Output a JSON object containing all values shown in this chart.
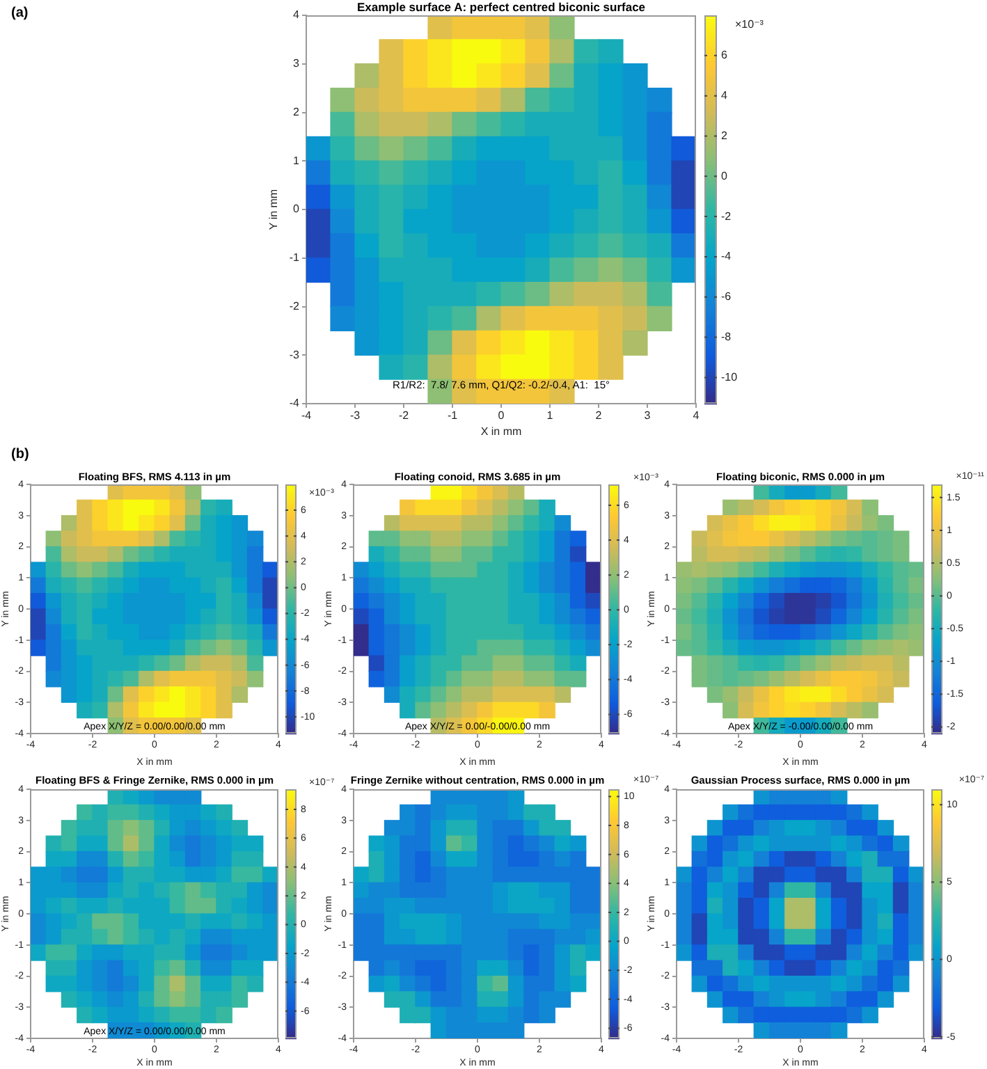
{
  "chart_data": [
    {
      "type": "heatmap",
      "title": "Example surface A: perfect centred biconic surface",
      "xlabel": "X in mm",
      "ylabel": "Y in mm",
      "clabel": "×10⁻³",
      "annotations": [
        "(a)",
        "R1/R2:  7.8/ 7.6 mm, Q1/Q2: -0.2/-0.4, A1:  15°"
      ],
      "x": [
        -3.75,
        -3.25,
        -2.75,
        -2.25,
        -1.75,
        -1.25,
        -0.75,
        -0.25,
        0.25,
        0.75,
        1.25,
        1.75,
        2.25,
        2.75,
        3.25,
        3.75
      ],
      "xlim": [
        -4,
        4
      ],
      "ylim": [
        -4,
        4
      ],
      "xticks": [
        -4,
        -3,
        -2,
        -1,
        0,
        1,
        2,
        3,
        4
      ],
      "yticks": [
        -4,
        -3,
        -2,
        -1,
        0,
        1,
        2,
        3,
        4
      ],
      "clim": [
        -11.3,
        8
      ],
      "cticks": [
        -10,
        -8,
        -6,
        -4,
        -2,
        0,
        2,
        4,
        6
      ],
      "cells": [
        [
          null,
          null,
          null,
          null,
          null,
          4,
          5,
          5,
          5,
          4,
          1,
          null,
          null,
          null,
          null,
          null
        ],
        [
          null,
          null,
          null,
          4,
          6,
          7,
          8,
          8,
          7,
          5,
          2,
          -2,
          -3,
          null,
          null,
          null
        ],
        [
          null,
          null,
          2,
          4,
          6,
          7,
          8,
          7,
          6,
          4,
          0,
          -3,
          -4,
          -5,
          null,
          null
        ],
        [
          null,
          1,
          3,
          4,
          5,
          5,
          5,
          4,
          2,
          -1,
          -2,
          -3,
          -4,
          -5,
          -6,
          null
        ],
        [
          null,
          -1,
          2,
          3,
          3,
          2,
          0,
          -1,
          -2,
          -3,
          -3,
          -3,
          -4,
          -5,
          -7,
          null
        ],
        [
          -5,
          -2,
          0,
          1,
          0,
          -1,
          -3,
          -4,
          -4,
          -4,
          -3,
          -3,
          -3,
          -5,
          -7,
          -9
        ],
        [
          -7,
          -3,
          -2,
          -1,
          -2,
          -3,
          -4,
          -5,
          -5,
          -4,
          -4,
          -3,
          -2,
          -4,
          -7,
          -10
        ],
        [
          -9,
          -5,
          -3,
          -2,
          -3,
          -4,
          -5,
          -5,
          -5,
          -5,
          -4,
          -4,
          -2,
          -3,
          -6,
          -10
        ],
        [
          -10,
          -6,
          -3,
          -2,
          -4,
          -4,
          -5,
          -5,
          -5,
          -5,
          -4,
          -3,
          -2,
          -3,
          -5,
          -9
        ],
        [
          -10,
          -7,
          -4,
          -2,
          -3,
          -4,
          -4,
          -5,
          -5,
          -4,
          -3,
          -2,
          -1,
          -2,
          -3,
          -7
        ],
        [
          -9,
          -7,
          -5,
          -3,
          -3,
          -3,
          -4,
          -4,
          -4,
          -3,
          -1,
          0,
          1,
          0,
          -2,
          -5
        ],
        [
          null,
          -7,
          -5,
          -4,
          -3,
          -3,
          -3,
          -2,
          -1,
          0,
          2,
          3,
          3,
          2,
          -1,
          null
        ],
        [
          null,
          -6,
          -5,
          -4,
          -3,
          -2,
          -1,
          2,
          4,
          5,
          5,
          5,
          4,
          3,
          1,
          null
        ],
        [
          null,
          null,
          -5,
          -4,
          -3,
          0,
          4,
          6,
          7,
          8,
          7,
          6,
          4,
          2,
          null,
          null
        ],
        [
          null,
          null,
          null,
          -3,
          -2,
          2,
          5,
          7,
          8,
          8,
          7,
          6,
          4,
          null,
          null,
          null
        ],
        [
          null,
          null,
          null,
          null,
          null,
          1,
          4,
          5,
          5,
          5,
          4,
          null,
          null,
          null,
          null,
          null
        ]
      ]
    },
    {
      "type": "heatmap",
      "title": "Floating BFS, RMS 4.113 in µm",
      "xlabel": "X in mm",
      "ylabel": "Y in mm",
      "clabel": "×10⁻³",
      "annotations": [
        "(b)",
        "Apex X/Y/Z = 0.00/0.00/0.00 mm"
      ],
      "x": [
        -3.75,
        -3.25,
        -2.75,
        -2.25,
        -1.75,
        -1.25,
        -0.75,
        -0.25,
        0.25,
        0.75,
        1.25,
        1.75,
        2.25,
        2.75,
        3.25,
        3.75
      ],
      "xlim": [
        -4,
        4
      ],
      "ylim": [
        -4,
        4
      ],
      "xticks": [
        -4,
        -2,
        0,
        2,
        4
      ],
      "yticks": [
        -4,
        -3,
        -2,
        -1,
        0,
        1,
        2,
        3,
        4
      ],
      "clim": [
        -11.3,
        8
      ],
      "cticks": [
        -10,
        -8,
        -6,
        -4,
        -2,
        0,
        2,
        4,
        6
      ],
      "cells": [
        [
          null,
          null,
          null,
          null,
          null,
          4,
          5,
          5,
          5,
          4,
          1,
          null,
          null,
          null,
          null,
          null
        ],
        [
          null,
          null,
          null,
          4,
          6,
          7,
          8,
          8,
          7,
          5,
          2,
          -2,
          -3,
          null,
          null,
          null
        ],
        [
          null,
          null,
          2,
          4,
          6,
          7,
          8,
          7,
          6,
          4,
          0,
          -3,
          -4,
          -5,
          null,
          null
        ],
        [
          null,
          1,
          3,
          4,
          5,
          5,
          5,
          4,
          2,
          -1,
          -2,
          -3,
          -4,
          -5,
          -6,
          null
        ],
        [
          null,
          -1,
          2,
          3,
          3,
          2,
          0,
          -1,
          -2,
          -3,
          -3,
          -3,
          -4,
          -5,
          -7,
          null
        ],
        [
          -5,
          -2,
          0,
          1,
          0,
          -1,
          -3,
          -4,
          -4,
          -4,
          -3,
          -3,
          -3,
          -5,
          -7,
          -9
        ],
        [
          -7,
          -3,
          -2,
          -1,
          -2,
          -3,
          -4,
          -5,
          -5,
          -4,
          -4,
          -3,
          -2,
          -4,
          -7,
          -10
        ],
        [
          -9,
          -5,
          -3,
          -2,
          -3,
          -4,
          -5,
          -5,
          -5,
          -5,
          -4,
          -4,
          -2,
          -3,
          -6,
          -10
        ],
        [
          -10,
          -6,
          -3,
          -2,
          -4,
          -4,
          -5,
          -5,
          -5,
          -5,
          -4,
          -3,
          -2,
          -3,
          -5,
          -9
        ],
        [
          -10,
          -7,
          -4,
          -2,
          -3,
          -4,
          -4,
          -5,
          -5,
          -4,
          -3,
          -2,
          -1,
          -2,
          -3,
          -7
        ],
        [
          -9,
          -7,
          -5,
          -3,
          -3,
          -3,
          -4,
          -4,
          -4,
          -3,
          -1,
          0,
          1,
          0,
          -2,
          -5
        ],
        [
          null,
          -7,
          -5,
          -4,
          -3,
          -3,
          -3,
          -2,
          -1,
          0,
          2,
          3,
          3,
          2,
          -1,
          null
        ],
        [
          null,
          -6,
          -5,
          -4,
          -3,
          -2,
          -1,
          2,
          4,
          5,
          5,
          5,
          4,
          3,
          1,
          null
        ],
        [
          null,
          null,
          -5,
          -4,
          -3,
          0,
          4,
          6,
          7,
          8,
          7,
          6,
          4,
          2,
          null,
          null
        ],
        [
          null,
          null,
          null,
          -3,
          -2,
          2,
          5,
          7,
          8,
          8,
          7,
          6,
          4,
          null,
          null,
          null
        ],
        [
          null,
          null,
          null,
          null,
          null,
          1,
          4,
          5,
          5,
          5,
          4,
          null,
          null,
          null,
          null,
          null
        ]
      ]
    },
    {
      "type": "heatmap",
      "title": "Floating conoid, RMS 3.685 in µm",
      "xlabel": "X in mm",
      "ylabel": "Y in mm",
      "clabel": "×10⁻³",
      "annotations": [
        "Apex X/Y/Z = 0.00/-0.00/0.00 mm"
      ],
      "x": [
        -3.75,
        -3.25,
        -2.75,
        -2.25,
        -1.75,
        -1.25,
        -0.75,
        -0.25,
        0.25,
        0.75,
        1.25,
        1.75,
        2.25,
        2.75,
        3.25,
        3.75
      ],
      "xlim": [
        -4,
        4
      ],
      "ylim": [
        -4,
        4
      ],
      "xticks": [
        -4,
        -2,
        0,
        2,
        4
      ],
      "yticks": [
        -4,
        -3,
        -2,
        -1,
        0,
        1,
        2,
        3,
        4
      ],
      "clim": [
        -7.1,
        7.2
      ],
      "cticks": [
        -6,
        -4,
        -2,
        0,
        2,
        4,
        6
      ],
      "cells": [
        [
          null,
          null,
          null,
          null,
          null,
          7,
          7,
          6,
          5,
          4,
          3,
          null,
          null,
          null,
          null,
          null
        ],
        [
          null,
          null,
          null,
          5,
          6,
          6,
          6,
          5,
          4,
          3,
          2,
          1,
          -1,
          null,
          null,
          null
        ],
        [
          null,
          null,
          3,
          4,
          4,
          4,
          4,
          3,
          3,
          2,
          1,
          0,
          -1,
          -3,
          null,
          null
        ],
        [
          null,
          1,
          1,
          2,
          2,
          3,
          3,
          2,
          2,
          1,
          0,
          -1,
          -2,
          -4,
          -5,
          null
        ],
        [
          null,
          -1,
          0,
          1,
          1,
          2,
          2,
          1,
          1,
          0,
          0,
          -1,
          -2,
          -4,
          -6,
          null
        ],
        [
          -3,
          -2,
          -1,
          0,
          0,
          1,
          1,
          1,
          0,
          0,
          -1,
          -2,
          -3,
          -4,
          -5,
          -7
        ],
        [
          -4,
          -3,
          -2,
          -1,
          -1,
          0,
          0,
          0,
          0,
          0,
          -1,
          -2,
          -3,
          -4,
          -5,
          -7
        ],
        [
          -5,
          -4,
          -3,
          -2,
          -1,
          -1,
          0,
          0,
          0,
          0,
          -1,
          -1,
          -2,
          -3,
          -5,
          -6
        ],
        [
          -6,
          -5,
          -3,
          -2,
          -1,
          -1,
          0,
          0,
          0,
          0,
          -1,
          -1,
          -2,
          -3,
          -4,
          -5
        ],
        [
          -7,
          -5,
          -4,
          -3,
          -2,
          -1,
          0,
          0,
          0,
          0,
          0,
          -1,
          -1,
          -2,
          -3,
          -4
        ],
        [
          -7,
          -5,
          -4,
          -3,
          -2,
          -1,
          0,
          0,
          1,
          1,
          1,
          0,
          0,
          -1,
          -2,
          -3
        ],
        [
          null,
          -6,
          -4,
          -2,
          -1,
          0,
          0,
          1,
          1,
          2,
          2,
          1,
          1,
          0,
          -1,
          null
        ],
        [
          null,
          -5,
          -4,
          -2,
          -1,
          0,
          1,
          2,
          2,
          3,
          3,
          2,
          2,
          1,
          1,
          null
        ],
        [
          null,
          null,
          -3,
          -1,
          0,
          1,
          2,
          3,
          3,
          4,
          4,
          4,
          4,
          3,
          null,
          null
        ],
        [
          null,
          null,
          null,
          -1,
          1,
          2,
          3,
          4,
          5,
          6,
          6,
          6,
          5,
          null,
          null,
          null
        ],
        [
          null,
          null,
          null,
          null,
          null,
          3,
          4,
          5,
          6,
          7,
          7,
          null,
          null,
          null,
          null,
          null
        ]
      ]
    },
    {
      "type": "heatmap",
      "title": "Floating biconic, RMS 0.000 in µm",
      "xlabel": "X in mm",
      "ylabel": "Y in mm",
      "clabel": "×10⁻¹¹",
      "annotations": [
        "Apex X/Y/Z = -0.00/0.00/0.00 mm"
      ],
      "x": [
        -3.75,
        -3.25,
        -2.75,
        -2.25,
        -1.75,
        -1.25,
        -0.75,
        -0.25,
        0.25,
        0.75,
        1.25,
        1.75,
        2.25,
        2.75,
        3.25,
        3.75
      ],
      "xlim": [
        -4,
        4
      ],
      "ylim": [
        -4,
        4
      ],
      "xticks": [
        -4,
        -2,
        0,
        2,
        4
      ],
      "yticks": [
        -4,
        -3,
        -2,
        -1,
        0,
        1,
        2,
        3,
        4
      ],
      "clim": [
        -2.1,
        1.7
      ],
      "cticks": [
        -2,
        -1.5,
        -1,
        -0.5,
        0,
        0.5,
        1,
        1.5
      ],
      "cells": [
        [
          null,
          null,
          null,
          null,
          null,
          -0.1,
          -0.5,
          -0.8,
          -0.8,
          -0.5,
          -0.1,
          null,
          null,
          null,
          null,
          null
        ],
        [
          null,
          null,
          null,
          0.4,
          0.6,
          0.8,
          1.1,
          1.3,
          1.4,
          1.3,
          1.1,
          0.8,
          0.3,
          null,
          null,
          null
        ],
        [
          null,
          null,
          0.8,
          1.0,
          1.2,
          1.4,
          1.6,
          1.6,
          1.5,
          1.3,
          1.0,
          0.7,
          0.4,
          0.2,
          null,
          null
        ],
        [
          null,
          0.7,
          0.9,
          1.1,
          1.2,
          1.2,
          1.0,
          0.8,
          0.6,
          0.4,
          0.2,
          0.1,
          0.0,
          0.1,
          0.2,
          null
        ],
        [
          null,
          0.6,
          0.8,
          0.8,
          0.7,
          0.6,
          0.4,
          0.2,
          0.0,
          -0.2,
          -0.3,
          -0.2,
          0.0,
          0.1,
          0.2,
          null
        ],
        [
          0.4,
          0.5,
          0.4,
          0.3,
          0.1,
          -0.1,
          -0.4,
          -0.6,
          -0.8,
          -0.9,
          -0.9,
          -0.8,
          -0.5,
          -0.2,
          0.0,
          0.1
        ],
        [
          0.3,
          0.2,
          0.0,
          -0.3,
          -0.6,
          -0.9,
          -1.2,
          -1.4,
          -1.6,
          -1.6,
          -1.5,
          -1.2,
          -0.8,
          -0.3,
          0.0,
          0.2
        ],
        [
          0.2,
          0.0,
          -0.3,
          -0.7,
          -1.1,
          -1.5,
          -1.8,
          -2.0,
          -2.0,
          -1.9,
          -1.7,
          -1.3,
          -0.9,
          -0.4,
          -0.1,
          0.1
        ],
        [
          0.1,
          -0.1,
          -0.4,
          -0.9,
          -1.3,
          -1.7,
          -1.9,
          -2.0,
          -2.0,
          -1.8,
          -1.5,
          -1.1,
          -0.7,
          -0.3,
          0.0,
          0.2
        ],
        [
          0.2,
          0.0,
          -0.3,
          -0.8,
          -1.2,
          -1.5,
          -1.6,
          -1.6,
          -1.4,
          -1.2,
          -0.9,
          -0.6,
          -0.3,
          0.0,
          0.2,
          0.3
        ],
        [
          0.1,
          0.0,
          -0.2,
          -0.5,
          -0.8,
          -0.9,
          -0.9,
          -0.8,
          -0.6,
          -0.4,
          -0.1,
          0.1,
          0.3,
          0.4,
          0.5,
          0.4
        ],
        [
          null,
          0.2,
          0.1,
          0.0,
          -0.2,
          -0.3,
          -0.2,
          0.0,
          0.2,
          0.4,
          0.6,
          0.7,
          0.8,
          0.8,
          0.6,
          null
        ],
        [
          null,
          0.2,
          0.1,
          0.0,
          0.1,
          0.2,
          0.4,
          0.6,
          0.8,
          1.0,
          1.2,
          1.2,
          1.1,
          0.9,
          0.7,
          null
        ],
        [
          null,
          null,
          0.2,
          0.4,
          0.7,
          1.0,
          1.3,
          1.5,
          1.6,
          1.6,
          1.4,
          1.2,
          1.0,
          0.8,
          null,
          null
        ],
        [
          null,
          null,
          null,
          0.3,
          0.8,
          1.1,
          1.3,
          1.4,
          1.3,
          1.1,
          0.8,
          0.6,
          0.4,
          null,
          null,
          null
        ],
        [
          null,
          null,
          null,
          null,
          null,
          -0.1,
          -0.5,
          -0.8,
          -0.8,
          -0.5,
          -0.1,
          null,
          null,
          null,
          null,
          null
        ]
      ]
    },
    {
      "type": "heatmap",
      "title": "Floating BFS & Fringe Zernike, RMS 0.000 in µm",
      "xlabel": "X in mm",
      "ylabel": "Y in mm",
      "clabel": "×10⁻⁷",
      "annotations": [
        "Apex X/Y/Z = 0.00/0.00/0.00 mm"
      ],
      "x": [
        -3.75,
        -3.25,
        -2.75,
        -2.25,
        -1.75,
        -1.25,
        -0.75,
        -0.25,
        0.25,
        0.75,
        1.25,
        1.75,
        2.25,
        2.75,
        3.25,
        3.75
      ],
      "xlim": [
        -4,
        4
      ],
      "ylim": [
        -4,
        4
      ],
      "xticks": [
        -4,
        -2,
        0,
        2,
        4
      ],
      "yticks": [
        -4,
        -3,
        -2,
        -1,
        0,
        1,
        2,
        3,
        4
      ],
      "clim": [
        -7.9,
        9.4
      ],
      "cticks": [
        -6,
        -4,
        -2,
        0,
        2,
        4,
        6,
        8
      ],
      "cells": [
        [
          null,
          null,
          null,
          null,
          null,
          0,
          -1,
          -2,
          -3,
          -3,
          -3,
          null,
          null,
          null,
          null,
          null
        ],
        [
          null,
          null,
          null,
          1,
          0,
          1,
          1,
          0,
          -1,
          -2,
          -2,
          -1,
          0,
          null,
          null,
          null
        ],
        [
          null,
          null,
          1,
          0,
          0,
          2,
          3,
          2,
          0,
          -2,
          -3,
          -2,
          -1,
          0,
          null,
          null
        ],
        [
          null,
          0,
          1,
          -1,
          -1,
          2,
          4,
          2,
          -1,
          -3,
          -4,
          -3,
          -2,
          -1,
          -1,
          null
        ],
        [
          null,
          -1,
          -1,
          -3,
          -3,
          0,
          2,
          1,
          -1,
          -2,
          -4,
          -3,
          -2,
          0,
          0,
          null
        ],
        [
          -2,
          -2,
          -3,
          -4,
          -4,
          -2,
          0,
          0,
          -1,
          -1,
          -2,
          -2,
          -1,
          1,
          1,
          -1
        ],
        [
          -2,
          -2,
          -2,
          -3,
          -3,
          -1,
          0,
          -1,
          0,
          1,
          2,
          1,
          0,
          0,
          -2,
          -3
        ],
        [
          -2,
          -1,
          0,
          -1,
          -1,
          0,
          -1,
          -1,
          -1,
          1,
          2,
          2,
          0,
          -1,
          -2,
          -3
        ],
        [
          -3,
          -2,
          -1,
          0,
          2,
          2,
          1,
          -1,
          -1,
          -1,
          0,
          -1,
          -1,
          0,
          -1,
          -2
        ],
        [
          -3,
          -2,
          0,
          0,
          1,
          2,
          1,
          0,
          -1,
          0,
          -1,
          -3,
          -3,
          -2,
          -2,
          -2
        ],
        [
          -1,
          1,
          1,
          -1,
          -2,
          -2,
          -1,
          -1,
          0,
          0,
          -2,
          -4,
          -4,
          -3,
          -2,
          -2
        ],
        [
          null,
          0,
          0,
          -2,
          -3,
          -4,
          -2,
          -1,
          1,
          2,
          0,
          -3,
          -3,
          -1,
          -1,
          null
        ],
        [
          null,
          -1,
          -1,
          -2,
          -3,
          -4,
          -3,
          -1,
          2,
          4,
          2,
          -1,
          -1,
          1,
          0,
          null
        ],
        [
          null,
          null,
          0,
          -1,
          -2,
          -3,
          -2,
          0,
          2,
          3,
          2,
          0,
          0,
          1,
          null,
          null
        ],
        [
          null,
          null,
          null,
          0,
          -1,
          -2,
          -2,
          -1,
          0,
          1,
          1,
          0,
          1,
          null,
          null,
          null
        ],
        [
          null,
          null,
          null,
          null,
          null,
          -3,
          -3,
          -3,
          -2,
          -1,
          0,
          null,
          null,
          null,
          null,
          null
        ]
      ]
    },
    {
      "type": "heatmap",
      "title": "Fringe Zernike without centration, RMS 0.000 in µm",
      "xlabel": "X in mm",
      "ylabel": "Y in mm",
      "clabel": "×10⁻⁷",
      "x": [
        -3.75,
        -3.25,
        -2.75,
        -2.25,
        -1.75,
        -1.25,
        -0.75,
        -0.25,
        0.25,
        0.75,
        1.25,
        1.75,
        2.25,
        2.75,
        3.25,
        3.75
      ],
      "xlim": [
        -4,
        4
      ],
      "ylim": [
        -4,
        4
      ],
      "xticks": [
        -4,
        -2,
        0,
        2,
        4
      ],
      "yticks": [
        -4,
        -3,
        -2,
        -1,
        0,
        1,
        2,
        3,
        4
      ],
      "clim": [
        -6.7,
        10.5
      ],
      "cticks": [
        -6,
        -4,
        -2,
        0,
        2,
        4,
        6,
        8,
        10
      ],
      "cells": [
        [
          null,
          null,
          null,
          null,
          null,
          -2,
          -2,
          -2,
          -2,
          -2,
          -1,
          null,
          null,
          null,
          null,
          null
        ],
        [
          null,
          null,
          null,
          -2,
          -3,
          -2,
          -1,
          -1,
          -2,
          -2,
          -1,
          1,
          1,
          null,
          null,
          null
        ],
        [
          null,
          null,
          -2,
          -2,
          -3,
          -1,
          1,
          1,
          -2,
          -3,
          -3,
          -1,
          1,
          1,
          null,
          null
        ],
        [
          null,
          0,
          -1,
          -3,
          -3,
          -1,
          3,
          2,
          -2,
          -3,
          -4,
          -3,
          -2,
          0,
          -1,
          null
        ],
        [
          null,
          1,
          -1,
          -3,
          -4,
          -2,
          0,
          0,
          -2,
          -3,
          -4,
          -4,
          -3,
          -2,
          -3,
          null
        ],
        [
          0,
          1,
          -1,
          -3,
          -4,
          -3,
          -2,
          -2,
          -2,
          -3,
          -3,
          -3,
          -3,
          -3,
          -3,
          -3
        ],
        [
          -1,
          -2,
          -2,
          -3,
          -3,
          -3,
          -2,
          -2,
          -2,
          -1,
          0,
          0,
          -1,
          -1,
          -3,
          -3
        ],
        [
          -2,
          -2,
          -1,
          -1,
          -2,
          -2,
          -2,
          -2,
          -2,
          -1,
          0,
          0,
          0,
          -1,
          -3,
          -3
        ],
        [
          -3,
          -3,
          -1,
          0,
          0,
          0,
          -1,
          -2,
          -2,
          -2,
          -2,
          -2,
          -1,
          -1,
          -2,
          -2
        ],
        [
          -3,
          -3,
          -1,
          -1,
          0,
          0,
          -1,
          -2,
          -2,
          -2,
          -3,
          -3,
          -3,
          -2,
          -2,
          -1
        ],
        [
          -3,
          -3,
          -3,
          -3,
          -3,
          -3,
          -3,
          -2,
          -2,
          -2,
          -3,
          -4,
          -3,
          -1,
          1,
          0
        ],
        [
          null,
          -3,
          -2,
          -3,
          -4,
          -4,
          -3,
          -2,
          0,
          0,
          -2,
          -4,
          -3,
          -1,
          1,
          null
        ],
        [
          null,
          -1,
          0,
          -2,
          -3,
          -4,
          -3,
          -2,
          2,
          3,
          -1,
          -3,
          -3,
          -1,
          0,
          null
        ],
        [
          null,
          null,
          1,
          1,
          -1,
          -3,
          -3,
          -2,
          1,
          1,
          -1,
          -3,
          -2,
          -2,
          null,
          null
        ],
        [
          null,
          null,
          null,
          1,
          1,
          -1,
          -2,
          -2,
          -1,
          -1,
          -2,
          -3,
          -2,
          null,
          null,
          null
        ],
        [
          null,
          null,
          null,
          null,
          null,
          -1,
          -2,
          -2,
          -2,
          -2,
          -2,
          null,
          null,
          null,
          null,
          null
        ]
      ]
    },
    {
      "type": "heatmap",
      "title": "Gaussian Process surface, RMS 0.000 in µm",
      "xlabel": "X in mm",
      "ylabel": "Y in mm",
      "clabel": "×10⁻⁷",
      "x": [
        -3.75,
        -3.25,
        -2.75,
        -2.25,
        -1.75,
        -1.25,
        -0.75,
        -0.25,
        0.25,
        0.75,
        1.25,
        1.75,
        2.25,
        2.75,
        3.25,
        3.75
      ],
      "xlim": [
        -4,
        4
      ],
      "ylim": [
        -4,
        4
      ],
      "xticks": [
        -4,
        -2,
        0,
        2,
        4
      ],
      "yticks": [
        -4,
        -3,
        -2,
        -1,
        0,
        1,
        2,
        3,
        4
      ],
      "clim": [
        -5.1,
        11
      ],
      "cticks": [
        -5,
        0,
        5,
        10
      ],
      "cells": [
        [
          null,
          null,
          null,
          null,
          null,
          0,
          -1,
          -1,
          -1,
          -1,
          0,
          null,
          null,
          null,
          null,
          null
        ],
        [
          null,
          null,
          null,
          0,
          -2,
          -3,
          -3,
          -3,
          -3,
          -3,
          -3,
          -2,
          0,
          null,
          null,
          null
        ],
        [
          null,
          null,
          0,
          -3,
          -3,
          -1,
          0,
          1,
          1,
          0,
          -1,
          -3,
          -3,
          0,
          null,
          null
        ],
        [
          null,
          0,
          -3,
          -2,
          0,
          1,
          0,
          0,
          0,
          0,
          1,
          0,
          -2,
          -3,
          0,
          null
        ],
        [
          null,
          -2,
          -3,
          0,
          1,
          -1,
          -3,
          -4,
          -4,
          -3,
          -1,
          1,
          2,
          -2,
          -2,
          null
        ],
        [
          0,
          -3,
          -1,
          1,
          -1,
          -4,
          -4,
          -3,
          -3,
          -4,
          -4,
          -1,
          2,
          2,
          -3,
          0
        ],
        [
          -1,
          -3,
          1,
          0,
          -3,
          -4,
          -1,
          3,
          3,
          -1,
          -4,
          -4,
          1,
          1,
          -4,
          -1
        ],
        [
          -1,
          -3,
          2,
          0,
          -4,
          -3,
          1,
          6,
          6,
          1,
          -3,
          -4,
          0,
          1,
          -4,
          -1
        ],
        [
          -1,
          -4,
          1,
          0,
          -4,
          -3,
          1,
          6,
          6,
          1,
          -3,
          -4,
          0,
          2,
          -3,
          -1
        ],
        [
          -1,
          -4,
          1,
          1,
          -4,
          -4,
          -1,
          3,
          3,
          -1,
          -4,
          -3,
          0,
          1,
          -3,
          -1
        ],
        [
          0,
          -3,
          2,
          2,
          -1,
          -4,
          -4,
          -3,
          -3,
          -4,
          -4,
          -1,
          1,
          -1,
          -3,
          0
        ],
        [
          null,
          -2,
          -2,
          2,
          1,
          -1,
          -3,
          -4,
          -4,
          -3,
          -1,
          1,
          0,
          -3,
          -2,
          null
        ],
        [
          null,
          0,
          -3,
          -2,
          0,
          1,
          0,
          0,
          0,
          0,
          1,
          0,
          -2,
          -3,
          0,
          null
        ],
        [
          null,
          null,
          0,
          -3,
          -3,
          -1,
          0,
          1,
          1,
          0,
          -1,
          -3,
          -3,
          0,
          null,
          null
        ],
        [
          null,
          null,
          null,
          0,
          -2,
          -3,
          -3,
          -3,
          -3,
          -3,
          -3,
          -2,
          0,
          null,
          null,
          null
        ],
        [
          null,
          null,
          null,
          null,
          null,
          0,
          -1,
          -1,
          -1,
          -1,
          0,
          null,
          null,
          null,
          null,
          null
        ]
      ]
    }
  ]
}
